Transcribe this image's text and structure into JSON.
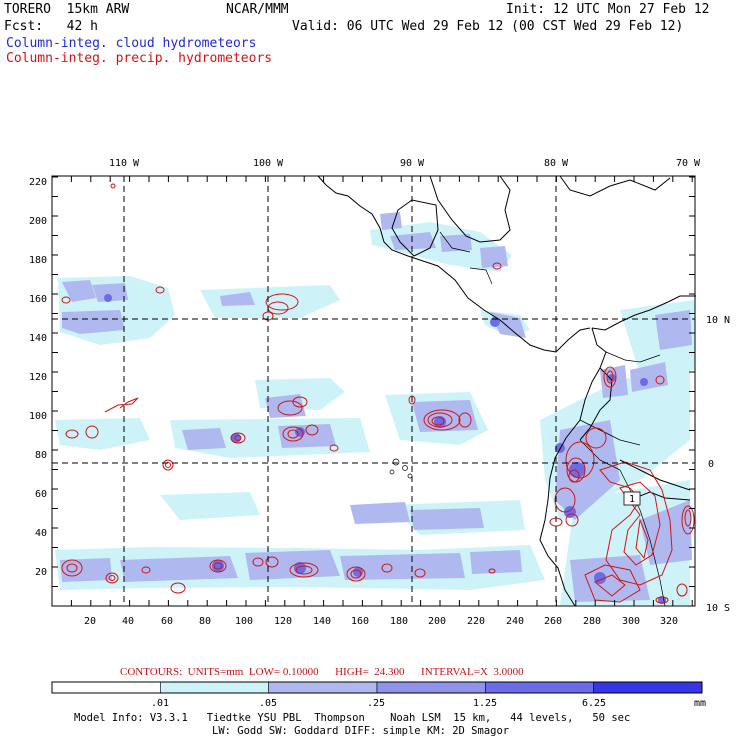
{
  "header": {
    "model": "TORERO  15km ARW",
    "org": "NCAR/MMM",
    "init": "Init: 12 UTC Mon 27 Feb 12",
    "fcst": "Fcst:   42 h",
    "valid": "Valid: 06 UTC Wed 29 Feb 12 (00 CST Wed 29 Feb 12)",
    "field_cloud": "Column-integ. cloud hydrometeors",
    "field_precip": "Column-integ. precip. hydrometeors"
  },
  "map": {
    "top_lon_labels": [
      "110 W",
      "100 W",
      "90 W",
      "80 W",
      "70 W"
    ],
    "right_lat_labels": [
      "10 N",
      "0",
      "10 S"
    ],
    "x_ticks": [
      "20",
      "40",
      "60",
      "80",
      "100",
      "120",
      "140",
      "160",
      "180",
      "200",
      "220",
      "240",
      "260",
      "280",
      "300",
      "320"
    ],
    "y_ticks": [
      "220",
      "200",
      "180",
      "160",
      "140",
      "120",
      "100",
      "80",
      "60",
      "40",
      "20"
    ],
    "contour_label": "1"
  },
  "contour_info": "CONTOURS:  UNITS=mm  LOW= 0.10000      HIGH=  24.300      INTERVAL=X  3.0000",
  "colorbar": {
    "labels": [
      ".01",
      ".05",
      ".25",
      "1.25",
      "6.25"
    ],
    "unit": "mm",
    "colors": [
      "#ffffff",
      "#cdf3f8",
      "#b0b8f0",
      "#8f93ec",
      "#6a6ce8",
      "#3636e6"
    ]
  },
  "model_info": {
    "line1": "Model Info: V3.3.1   Tiedtke YSU PBL  Thompson    Noah LSM  15 km,   44 levels,   50 sec",
    "line2": "LW: Godd SW: Goddard DIFF: simple KM: 2D Smagor"
  },
  "colors": {
    "cloud_title": "#1f2bd6",
    "precip_title": "#d41414",
    "contour": "#d41414"
  }
}
